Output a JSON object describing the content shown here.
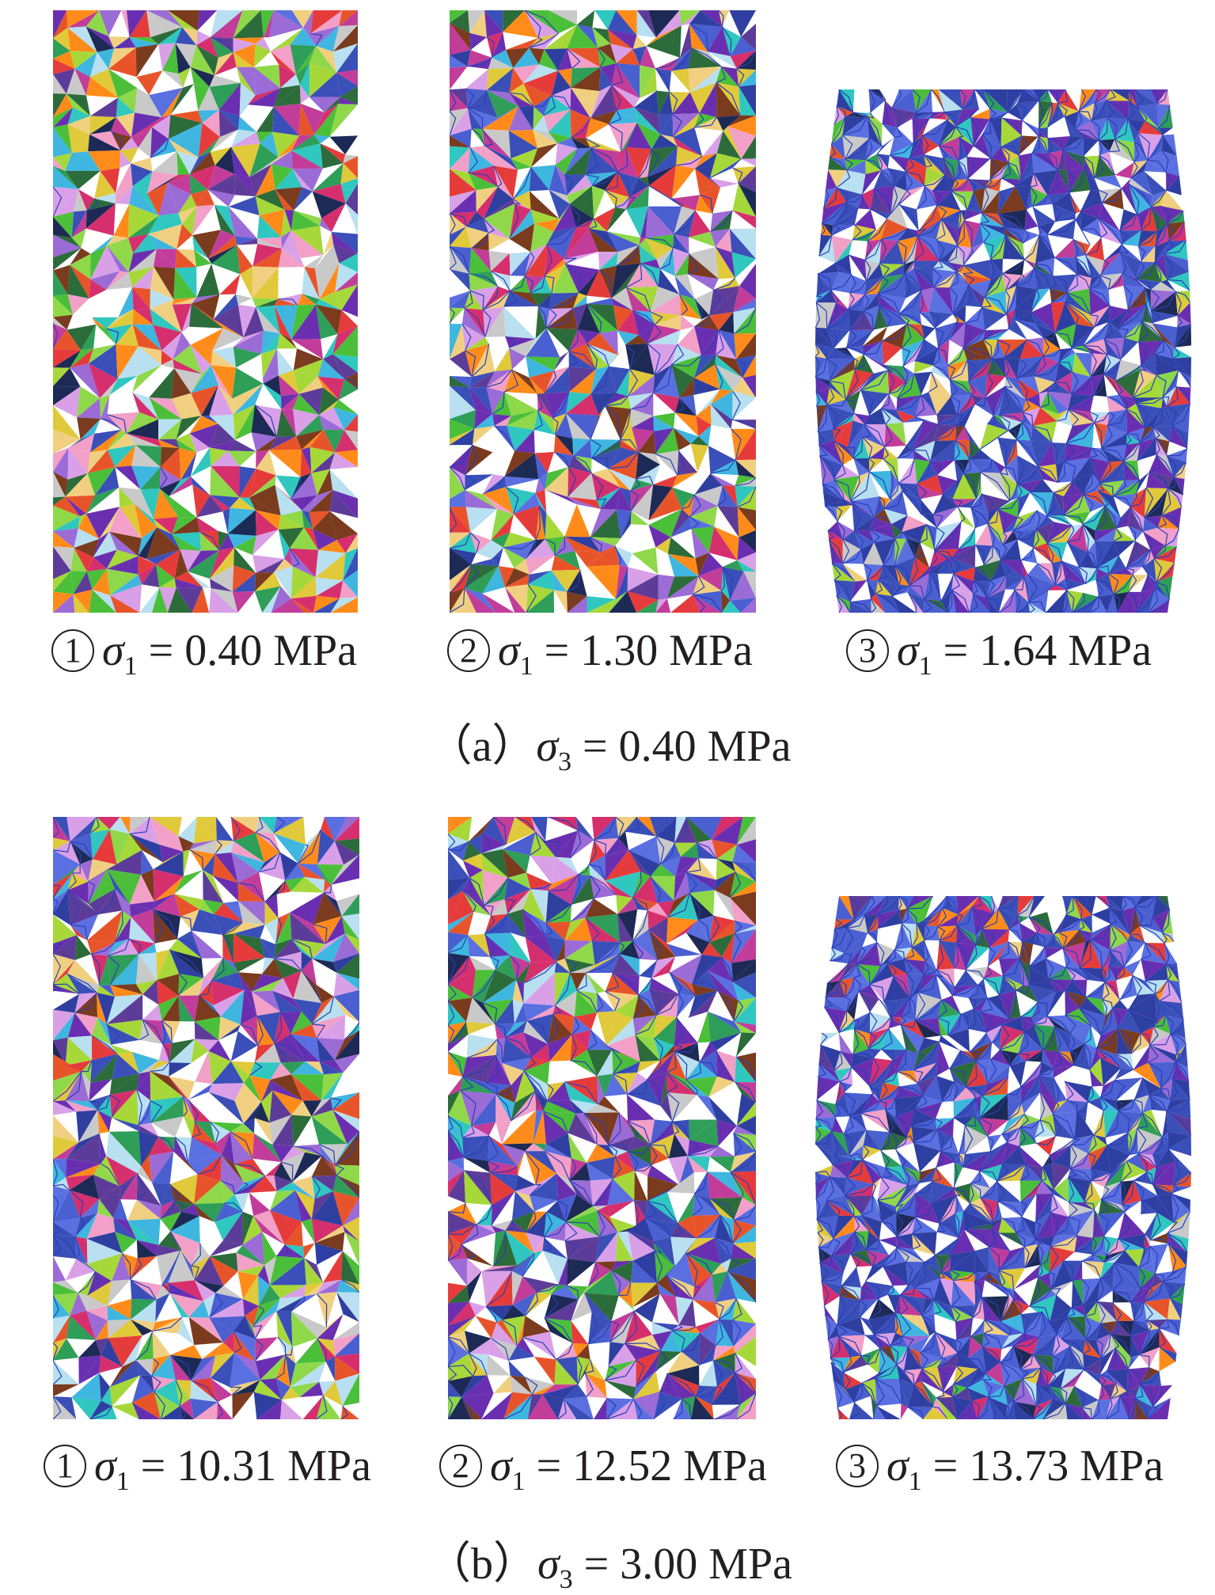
{
  "groups": [
    {
      "caption": {
        "prefix": "（a）",
        "sigma": "σ",
        "sub": "3",
        "value": " = 0.40 MPa"
      },
      "stages": [
        {
          "num": "1",
          "sigma": "σ",
          "sub": "1",
          "value": " = 0.40 MPa",
          "cracking": 0.02,
          "bulge": 0
        },
        {
          "num": "2",
          "sigma": "σ",
          "sub": "1",
          "value": " = 1.30 MPa",
          "cracking": 0.25,
          "bulge": 0
        },
        {
          "num": "3",
          "sigma": "σ",
          "sub": "1",
          "value": " = 1.64 MPa",
          "cracking": 0.85,
          "bulge": 1
        }
      ]
    },
    {
      "caption": {
        "prefix": "（b）",
        "sigma": "σ",
        "sub": "3",
        "value": " = 3.00 MPa"
      },
      "stages": [
        {
          "num": "1",
          "sigma": "σ",
          "sub": "1",
          "value": " = 10.31 MPa",
          "cracking": 0.2,
          "bulge": 0
        },
        {
          "num": "2",
          "sigma": "σ",
          "sub": "1",
          "value": " = 12.52 MPa",
          "cracking": 0.4,
          "bulge": 0
        },
        {
          "num": "3",
          "sigma": "σ",
          "sub": "1",
          "value": " = 13.73 MPa",
          "cracking": 0.9,
          "bulge": 1
        }
      ]
    }
  ],
  "colors": {
    "crack": "#2a3fb8"
  }
}
